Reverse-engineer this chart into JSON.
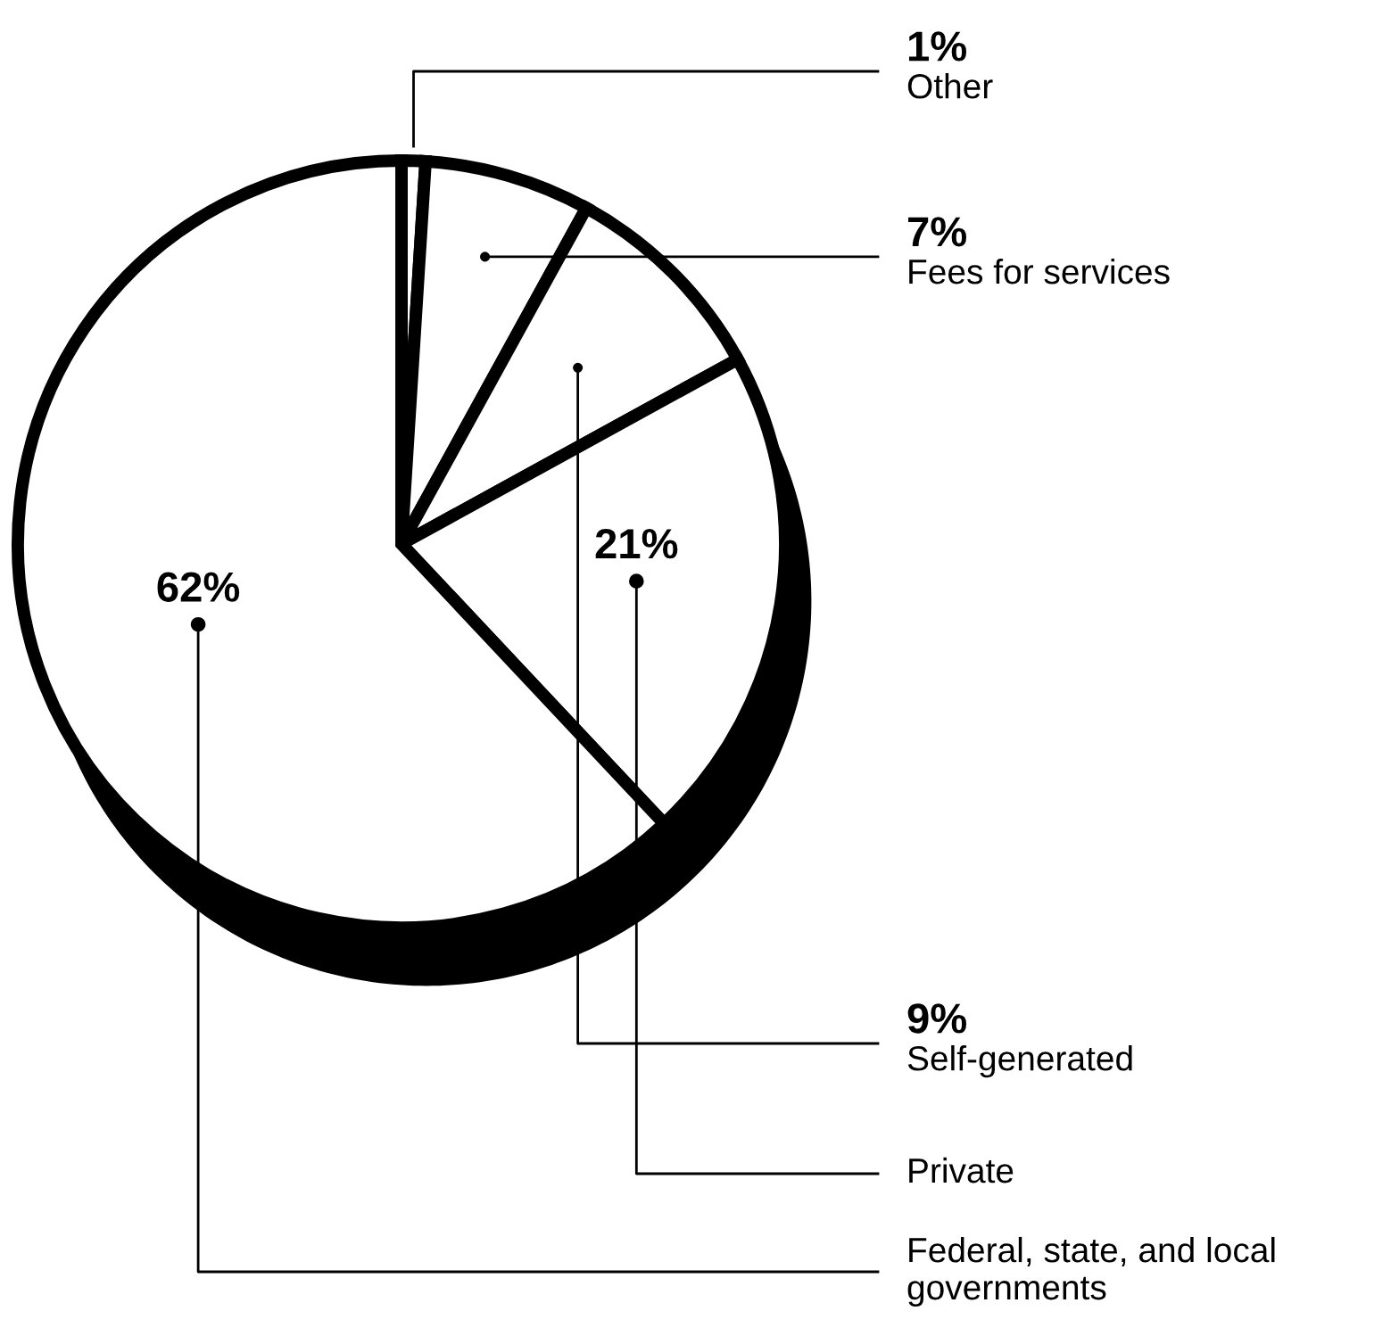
{
  "chart_data": {
    "type": "pie",
    "categories": [
      "Other",
      "Fees for services",
      "Self-generated",
      "Private",
      "Federal, state, and local governments"
    ],
    "values": [
      1,
      7,
      9,
      21,
      62
    ],
    "colors": [
      "#ffffff",
      "#ffffff",
      "#ffffff",
      "#ffffff",
      "#ffffff"
    ],
    "value_labels": [
      "1%",
      "7%",
      "9%",
      "21%",
      "62%"
    ]
  }
}
